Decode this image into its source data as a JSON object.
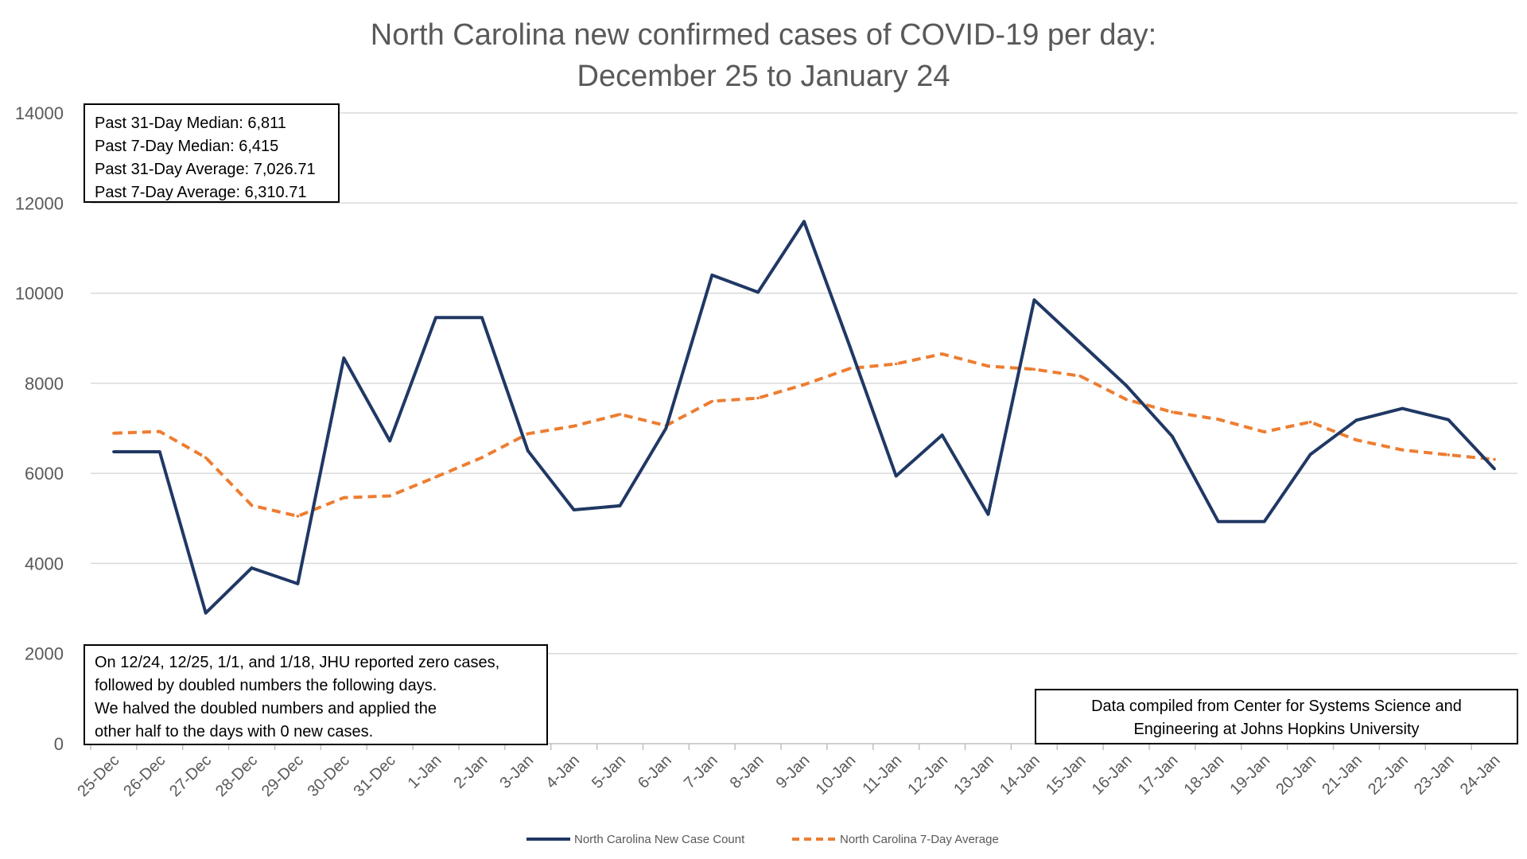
{
  "chart_data": {
    "type": "line",
    "title": "North Carolina new confirmed cases of COVID-19 per day:",
    "subtitle": "December 25 to January 24",
    "xlabel": "",
    "ylabel": "",
    "ylim": [
      0,
      14000
    ],
    "yticks": [
      0,
      2000,
      4000,
      6000,
      8000,
      10000,
      12000,
      14000
    ],
    "grid": true,
    "legend_position": "bottom",
    "categories": [
      "25-Dec",
      "26-Dec",
      "27-Dec",
      "28-Dec",
      "29-Dec",
      "30-Dec",
      "31-Dec",
      "1-Jan",
      "2-Jan",
      "3-Jan",
      "4-Jan",
      "5-Jan",
      "6-Jan",
      "7-Jan",
      "8-Jan",
      "9-Jan",
      "10-Jan",
      "11-Jan",
      "12-Jan",
      "13-Jan",
      "14-Jan",
      "15-Jan",
      "16-Jan",
      "17-Jan",
      "18-Jan",
      "19-Jan",
      "20-Jan",
      "21-Jan",
      "22-Jan",
      "23-Jan",
      "24-Jan"
    ],
    "series": [
      {
        "name": "North Carolina New Case Count",
        "color": "#203864",
        "style": "solid",
        "values": [
          6480,
          6480,
          2900,
          3900,
          3550,
          8560,
          6720,
          9460,
          9460,
          6500,
          5190,
          5280,
          7000,
          10400,
          10020,
          11590,
          8800,
          5940,
          6850,
          5090,
          9850,
          8900,
          7950,
          6820,
          4930,
          4930,
          6420,
          7180,
          7440,
          7190,
          6100
        ]
      },
      {
        "name": "North Carolina 7-Day Average",
        "color": "#ED7D31",
        "style": "dashed",
        "values": [
          6890,
          6930,
          6350,
          5290,
          5050,
          5460,
          5500,
          5920,
          6350,
          6880,
          7050,
          7310,
          7060,
          7600,
          7670,
          7970,
          8330,
          8430,
          8650,
          8380,
          8310,
          8160,
          7640,
          7360,
          7200,
          6920,
          7140,
          6740,
          6520,
          6410,
          6310
        ]
      }
    ]
  },
  "stats_box": {
    "line1": "Past 31-Day Median: 6,811",
    "line2": "Past 7-Day Median: 6,415",
    "line3": "Past 31-Day Average: 7,026.71",
    "line4": "Past 7-Day Average: 6,310.71"
  },
  "note_box": {
    "line1": "On 12/24, 12/25, 1/1, and 1/18, JHU reported zero cases,",
    "line2": "followed by doubled numbers the following days.",
    "line3": "We halved the doubled numbers and applied the",
    "line4": "other half to the days with 0 new cases."
  },
  "source_box": {
    "line1": "Data compiled from Center for Systems Science and",
    "line2": "Engineering at Johns Hopkins University"
  },
  "colors": {
    "axis_text": "#595959",
    "grid": "#D9D9D9",
    "case_line": "#203864",
    "average_line": "#ED7D31"
  }
}
